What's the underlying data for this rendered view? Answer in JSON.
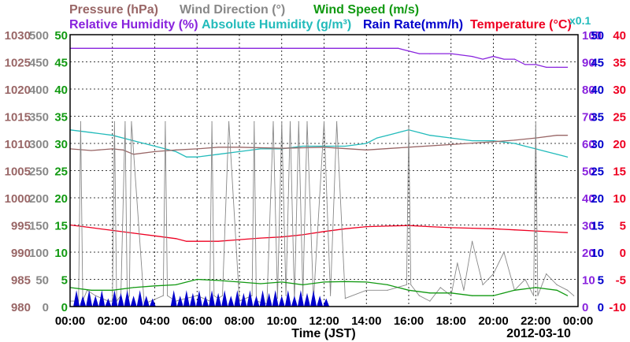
{
  "chart_data": {
    "type": "line",
    "date": "2012-03-10",
    "xlabel": "Time (JST)",
    "x_ticks": [
      "00:00",
      "02:00",
      "04:00",
      "06:00",
      "08:00",
      "10:00",
      "12:00",
      "14:00",
      "16:00",
      "18:00",
      "20:00",
      "22:00",
      "00:00"
    ],
    "grid": true,
    "legend": [
      {
        "label": "Pressure (hPa)",
        "color": "#996666"
      },
      {
        "label": "Wind Direction (°)",
        "color": "#888888"
      },
      {
        "label": "Wind Speed (m/s)",
        "color": "#119911"
      },
      {
        "label": "Relative Humidity (%)",
        "color": "#8822dd"
      },
      {
        "label": "Absolute Humidity (g/m³)",
        "color": "#22bbbb"
      },
      {
        "label": "Rain Rate(mm/h)",
        "color": "#0000cc"
      },
      {
        "label": "Temperature (°C)",
        "color": "#ee0022"
      }
    ],
    "axes": {
      "pressure": {
        "color": "#996666",
        "ylim": [
          980,
          1030
        ],
        "ticks": [
          980,
          985,
          990,
          995,
          1000,
          1005,
          1010,
          1015,
          1020,
          1025,
          1030
        ]
      },
      "wind_direction": {
        "color": "#888888",
        "ylim": [
          0,
          500
        ],
        "ticks": [
          0,
          50,
          100,
          150,
          200,
          250,
          300,
          350,
          400,
          450,
          500
        ]
      },
      "wind_speed": {
        "color": "#119911",
        "ylim": [
          0,
          50
        ],
        "ticks": [
          0,
          5,
          10,
          15,
          20,
          25,
          30,
          35,
          40,
          45,
          50
        ]
      },
      "humidity": {
        "color": "#8822dd",
        "ylim": [
          0,
          100
        ],
        "ticks": [
          0,
          10,
          20,
          30,
          40,
          50,
          60,
          70,
          80,
          90,
          100
        ]
      },
      "absolute_humidity": {
        "color": "#22bbbb",
        "label": "x0.1",
        "ylim": [
          0,
          50
        ],
        "ticks": [
          0,
          5,
          10,
          15,
          20,
          25,
          30,
          35,
          40,
          45,
          50
        ]
      },
      "rain": {
        "color": "#0000cc",
        "ylim": [
          0,
          50
        ],
        "ticks": [
          0,
          5,
          10,
          15,
          20,
          25,
          30,
          35,
          40,
          45,
          50
        ]
      },
      "temperature": {
        "color": "#ee0022",
        "ylim": [
          -10,
          40
        ],
        "ticks": [
          -10,
          -5,
          0,
          5,
          10,
          15,
          20,
          25,
          30,
          35,
          40
        ]
      }
    },
    "series": [
      {
        "name": "Relative Humidity (%)",
        "axis": "humidity",
        "x": [
          0,
          2,
          4,
          6,
          8,
          10,
          12,
          14,
          15.5,
          16,
          16.5,
          17,
          18,
          19,
          19.5,
          20,
          20.5,
          21,
          21.5,
          22,
          22.5,
          23,
          23.5
        ],
        "y": [
          95,
          95,
          95,
          95,
          95,
          95,
          95,
          95,
          95,
          94,
          93,
          93,
          93,
          92,
          91,
          92,
          91,
          91,
          89,
          89,
          88,
          88,
          88
        ]
      },
      {
        "name": "Absolute Humidity (g/m³)",
        "axis": "absolute_humidity",
        "x": [
          0,
          1,
          2,
          3,
          4,
          5,
          5.5,
          6,
          7,
          8,
          9,
          10,
          11,
          12,
          13,
          14,
          14.5,
          15,
          15.5,
          16,
          16.5,
          17,
          18,
          19,
          20,
          21,
          21.5,
          22,
          22.5,
          23,
          23.5
        ],
        "y": [
          32.5,
          32,
          31.5,
          30.5,
          29.5,
          28.5,
          27.5,
          27.5,
          28,
          28.5,
          29,
          29,
          29.5,
          29.5,
          29.5,
          30,
          31,
          31.5,
          32,
          32.5,
          32,
          31.5,
          31,
          30.5,
          30.5,
          30,
          29.5,
          29,
          28.5,
          28,
          27.5
        ]
      },
      {
        "name": "Pressure (hPa)",
        "axis": "pressure",
        "x": [
          0,
          1,
          2,
          2.5,
          3,
          4,
          5,
          6,
          7,
          8,
          10,
          12,
          14,
          16,
          18,
          20,
          21,
          22,
          23,
          23.5
        ],
        "y": [
          1009,
          1008.7,
          1009,
          1008.8,
          1008,
          1008.5,
          1008.8,
          1009,
          1009.3,
          1009.3,
          1009.1,
          1009.3,
          1008.8,
          1009.3,
          1009.8,
          1010.3,
          1010.6,
          1011,
          1011.5,
          1011.5
        ]
      },
      {
        "name": "Temperature (°C)",
        "axis": "temperature",
        "x": [
          0,
          1,
          2,
          3,
          4,
          5,
          5.5,
          6,
          7,
          8,
          9,
          10,
          11,
          12,
          13,
          14,
          15,
          16,
          17,
          18,
          19,
          20,
          21,
          22,
          23,
          23.5
        ],
        "y": [
          5,
          4.5,
          4,
          3.5,
          3,
          2.5,
          2,
          2,
          2,
          2.3,
          2.6,
          2.8,
          3.2,
          3.8,
          4.3,
          4.7,
          4.8,
          4.9,
          4.7,
          4.5,
          4.4,
          4.3,
          4.1,
          3.9,
          3.7,
          3.6
        ]
      },
      {
        "name": "Wind Direction (°)",
        "axis": "wind_direction",
        "x": [
          0,
          0.4,
          0.5,
          0.6,
          0.8,
          1.2,
          1.8,
          2,
          2.1,
          2.2,
          2.4,
          2.6,
          2.7,
          2.8,
          2.9,
          3.5,
          4.4,
          4.5,
          4.6,
          5,
          5.5,
          6,
          6.6,
          6.7,
          6.8,
          7,
          7.2,
          7.5,
          8,
          8.6,
          8.7,
          8.8,
          9.3,
          9.6,
          9.8,
          10,
          10.2,
          10.4,
          10.6,
          10.8,
          11,
          11.2,
          11.5,
          12,
          12.3,
          12.6,
          13,
          14,
          15,
          15.9,
          16,
          16.1,
          16.5,
          17,
          17.5,
          18,
          18.3,
          18.6,
          19,
          19.5,
          20,
          20.5,
          21,
          21.5,
          21.9,
          22,
          22.1,
          22.5,
          23,
          23.5,
          23.8
        ],
        "y": [
          10,
          10,
          340,
          10,
          30,
          20,
          10,
          10,
          340,
          10,
          20,
          340,
          10,
          20,
          340,
          5,
          20,
          340,
          20,
          10,
          15,
          20,
          10,
          340,
          20,
          15,
          20,
          340,
          10,
          20,
          340,
          10,
          5,
          340,
          15,
          340,
          20,
          340,
          10,
          340,
          20,
          340,
          10,
          340,
          20,
          340,
          15,
          30,
          30,
          40,
          330,
          40,
          20,
          10,
          35,
          20,
          80,
          30,
          120,
          40,
          60,
          100,
          30,
          50,
          20,
          340,
          20,
          60,
          40,
          30,
          20
        ]
      },
      {
        "name": "Wind Speed (m/s)",
        "axis": "wind_speed",
        "x": [
          0,
          1,
          2,
          3,
          4,
          5,
          6,
          7,
          8,
          9,
          10,
          11,
          12,
          13,
          14,
          15,
          16,
          17,
          18,
          19,
          20,
          21,
          22,
          23,
          23.5
        ],
        "y": [
          3.5,
          3,
          3,
          3.5,
          3.8,
          4,
          5,
          4.8,
          4.5,
          4.2,
          4.5,
          4,
          4.5,
          4.6,
          4.5,
          4,
          3,
          2.5,
          2.5,
          2,
          2,
          3,
          3.5,
          3,
          2
        ]
      },
      {
        "name": "Rain Rate(mm/h)",
        "axis": "rain",
        "x": [
          0.3,
          0.6,
          0.9,
          1.2,
          1.5,
          1.8,
          2.1,
          2.4,
          2.7,
          3.0,
          3.3,
          3.6,
          3.9,
          4.9,
          5.2,
          5.5,
          5.8,
          6.1,
          6.4,
          6.7,
          7.0,
          7.3,
          7.6,
          7.9,
          8.2,
          8.5,
          8.8,
          9.1,
          9.4,
          9.7,
          10.0,
          10.3,
          10.6,
          10.9,
          11.2,
          11.5,
          11.8,
          12.1
        ],
        "y": [
          3,
          2,
          3,
          2,
          3,
          1.5,
          3,
          2.5,
          3,
          2,
          3,
          2,
          1.5,
          3,
          2,
          3,
          2.5,
          3,
          2,
          3,
          2.5,
          3,
          2,
          3,
          2.5,
          3,
          2,
          3,
          2.5,
          3,
          2,
          3,
          2,
          3,
          2.5,
          3,
          2,
          1.5
        ]
      }
    ]
  }
}
